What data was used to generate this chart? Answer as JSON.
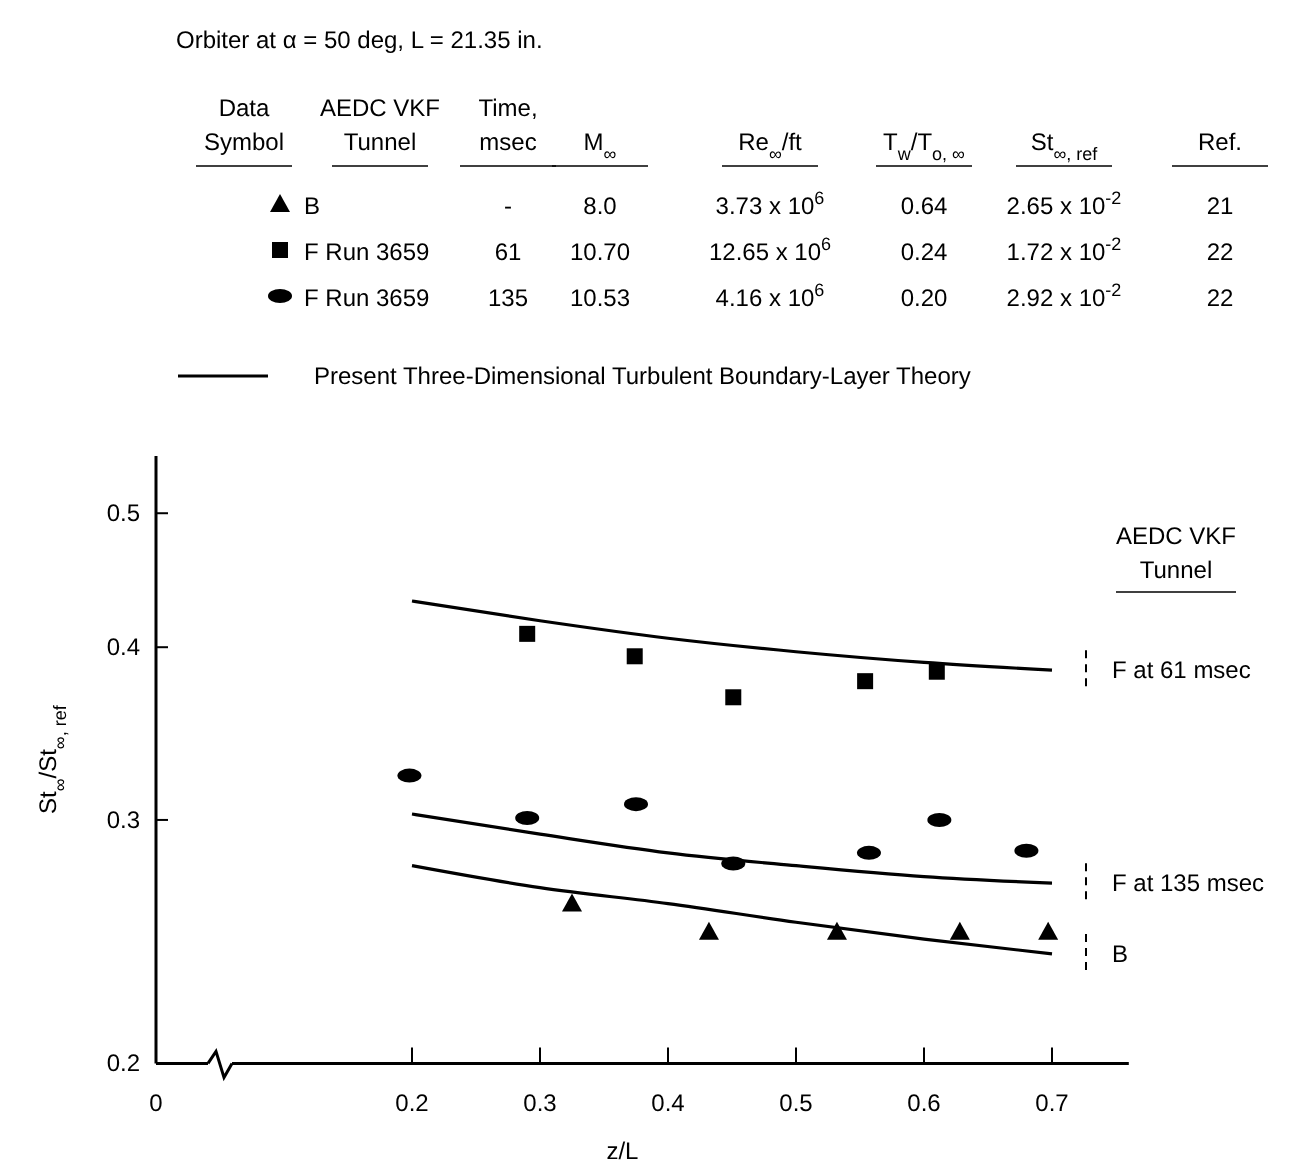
{
  "chart_data": {
    "type": "scatter",
    "title": "Orbiter at α = 50 deg, L = 21.35 in.",
    "xlabel": "z/L",
    "ylabel": "St$_{∞}$/St$_{∞, ref}$",
    "xlim": [
      0,
      0.76
    ],
    "xticks": [
      0,
      0.2,
      0.3,
      0.4,
      0.5,
      0.6,
      0.7
    ],
    "ylim": [
      0.2,
      0.55
    ],
    "yticks": [
      0.2,
      0.3,
      0.4,
      0.5
    ],
    "log": "y",
    "grid": false,
    "legend": "top",
    "series": [
      {
        "name": "B",
        "marker": "triangle",
        "color": "#000000",
        "x": [
          0.325,
          0.432,
          0.532,
          0.628,
          0.697
        ],
        "values": [
          0.261,
          0.249,
          0.249,
          0.249,
          0.249
        ]
      },
      {
        "name": "F Run 3659",
        "marker": "square",
        "color": "#000000",
        "x": [
          0.29,
          0.374,
          0.451,
          0.554,
          0.61
        ],
        "values": [
          0.409,
          0.394,
          0.368,
          0.378,
          0.384
        ]
      },
      {
        "name": "F Run 3659",
        "marker": "circle",
        "color": "#000000",
        "x": [
          0.198,
          0.29,
          0.375,
          0.451,
          0.557,
          0.612,
          0.68
        ],
        "values": [
          0.323,
          0.301,
          0.308,
          0.279,
          0.284,
          0.3,
          0.285
        ]
      },
      {
        "name": "Present Three-Dimensional Turbulent Boundary-Layer Theory",
        "type": "line",
        "marker": "none",
        "line_style": "solid",
        "color": "#000000",
        "x": [
          0.2,
          0.3,
          0.4,
          0.5,
          0.6,
          0.7
        ],
        "values": [
          0.432,
          0.418,
          0.406,
          0.397,
          0.39,
          0.385
        ]
      },
      {
        "type": "line",
        "marker": "none",
        "line_style": "solid",
        "color": "#000000",
        "x": [
          0.2,
          0.3,
          0.4,
          0.5,
          0.6,
          0.7
        ],
        "values": [
          0.303,
          0.293,
          0.284,
          0.278,
          0.273,
          0.27
        ]
      },
      {
        "type": "line",
        "marker": "none",
        "line_style": "solid",
        "color": "#000000",
        "x": [
          0.2,
          0.3,
          0.4,
          0.5,
          0.6,
          0.7
        ],
        "values": [
          0.278,
          0.268,
          0.261,
          0.253,
          0.246,
          0.24
        ]
      }
    ],
    "annotations": [
      "Data\nSymbol",
      "AEDC VKF\nTunnel",
      "Time,\nmsec",
      "M$_{∞}$",
      "Re$_{∞}$/ft",
      "T$_{w}$/T$_{o, ∞}$",
      "St$_{∞, ref}$",
      "Ref.",
      "-",
      "8.0",
      "3.73 x 10$^{6}$",
      "0.64",
      "2.65 x 10$^{-2}$",
      "21",
      "61",
      "10.70",
      "12.65 x 10$^{6}$",
      "0.24",
      "1.72 x 10$^{-2}$",
      "22",
      "135",
      "10.53",
      "4.16 x 10$^{6}$",
      "0.20",
      "2.92 x 10$^{-2}$",
      "22",
      "AEDC VKF\nTunnel",
      "F at 61 msec",
      "F at 135 msec",
      "B"
    ]
  }
}
